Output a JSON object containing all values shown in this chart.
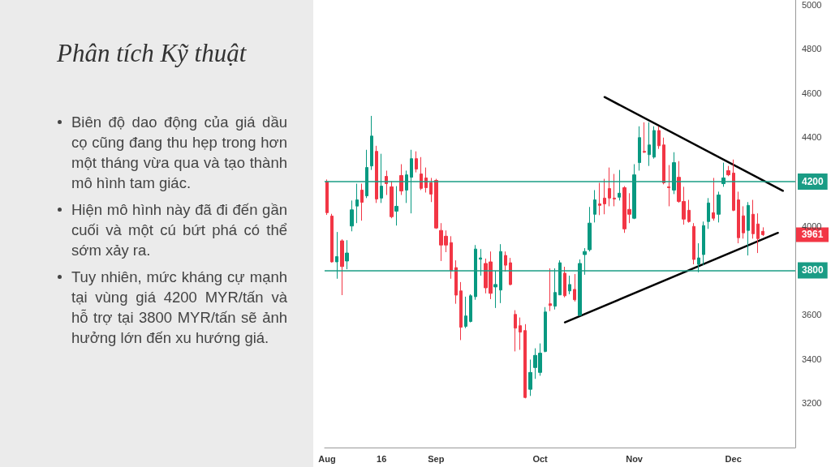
{
  "chart_data": {
    "type": "candlestick",
    "title": "Phân tích Kỹ thuật",
    "annotations": [
      "Biên độ dao động của giá dầu cọ cũng đang thu hẹp trong hơn một tháng vừa qua và tạo thành mô hình tam giác.",
      "Hiện mô hình này đã đi đến gần cuối và một cú bứt phá có thể sớm xảy ra.",
      "Tuy nhiên, mức kháng cự mạnh tại vùng giá 4200 MYR/tấn và hỗ trợ tại 3800 MYR/tấn sẽ ảnh hưởng lớn đến xu hướng giá.",
      {
        "text": "3961",
        "y": 3961
      }
    ],
    "categories": [
      "Aug",
      null,
      null,
      null,
      null,
      null,
      null,
      null,
      null,
      null,
      null,
      "16",
      null,
      null,
      null,
      null,
      null,
      null,
      null,
      null,
      null,
      null,
      "Sep",
      null,
      null,
      null,
      null,
      null,
      null,
      null,
      null,
      null,
      null,
      null,
      null,
      null,
      null,
      null,
      null,
      null,
      null,
      null,
      null,
      "Oct",
      null,
      null,
      null,
      null,
      null,
      null,
      null,
      null,
      null,
      null,
      null,
      null,
      null,
      null,
      null,
      null,
      null,
      null,
      "Nov",
      null,
      null,
      null,
      null,
      null,
      null,
      null,
      null,
      null,
      null,
      null,
      null,
      null,
      null,
      null,
      null,
      null,
      null,
      null,
      "Dec",
      null,
      null,
      null,
      null,
      null,
      null,
      null,
      null,
      null,
      null,
      null,
      null
    ],
    "ohlc": [
      [
        4200,
        4210,
        4050,
        4060
      ],
      [
        4045,
        4055,
        3835,
        3838
      ],
      [
        3838,
        3973,
        3762,
        3862
      ],
      [
        3933,
        3940,
        3688,
        3817
      ],
      [
        3842,
        3936,
        3805,
        3878
      ],
      [
        4000,
        4115,
        3976,
        4073
      ],
      [
        4090,
        4191,
        4013,
        4118
      ],
      [
        4162,
        4191,
        4024,
        4107
      ],
      [
        4136,
        4344,
        4126,
        4264
      ],
      [
        4271,
        4497,
        4253,
        4406
      ],
      [
        4337,
        4362,
        4104,
        4122
      ],
      [
        4126,
        4326,
        4104,
        4180
      ],
      [
        4224,
        4250,
        4140,
        4191
      ],
      [
        4177,
        4202,
        4035,
        4042
      ],
      [
        4067,
        4180,
        4002,
        4089
      ],
      [
        4228,
        4279,
        4140,
        4158
      ],
      [
        4162,
        4250,
        4104,
        4231
      ],
      [
        4220,
        4344,
        4057,
        4304
      ],
      [
        4304,
        4337,
        4242,
        4257
      ],
      [
        4235,
        4311,
        4162,
        4170
      ],
      [
        4217,
        4264,
        4151,
        4173
      ],
      [
        4195,
        4217,
        4108,
        4144
      ],
      [
        4206,
        4213,
        3987,
        3991
      ],
      [
        3980,
        4013,
        3842,
        3914
      ],
      [
        3954,
        3980,
        3882,
        3914
      ],
      [
        3925,
        3954,
        3762,
        3798
      ],
      [
        3812,
        3845,
        3649,
        3688
      ],
      [
        3707,
        3747,
        3485,
        3543
      ],
      [
        3547,
        3681,
        3539,
        3594
      ],
      [
        3569,
        3692,
        3565,
        3685
      ],
      [
        3681,
        3914,
        3667,
        3896
      ],
      [
        3850,
        3896,
        3776,
        3856
      ],
      [
        3831,
        3853,
        3696,
        3721
      ],
      [
        3838,
        3885,
        3670,
        3696
      ],
      [
        3725,
        3798,
        3630,
        3736
      ],
      [
        3711,
        3918,
        3652,
        3885
      ],
      [
        3867,
        3885,
        3794,
        3823
      ],
      [
        3834,
        3856,
        3732,
        3736
      ],
      [
        3601,
        3620,
        3434,
        3539
      ],
      [
        3550,
        3587,
        3441,
        3521
      ],
      [
        3528,
        3557,
        3222,
        3226
      ],
      [
        3263,
        3397,
        3233,
        3339
      ],
      [
        3361,
        3448,
        3310,
        3416
      ],
      [
        3339,
        3470,
        3324,
        3426
      ],
      [
        3434,
        3634,
        3430,
        3612
      ],
      [
        3649,
        3809,
        3616,
        3641
      ],
      [
        3638,
        3809,
        3623,
        3700
      ],
      [
        3689,
        3845,
        3689,
        3834
      ],
      [
        3787,
        3816,
        3678,
        3685
      ],
      [
        3707,
        3776,
        3692,
        3736
      ],
      [
        3714,
        3783,
        3659,
        3667
      ],
      [
        3597,
        3849,
        3594,
        3831
      ],
      [
        3871,
        3900,
        3780,
        3885
      ],
      [
        3893,
        4086,
        3885,
        4013
      ],
      [
        4053,
        4162,
        4016,
        4118
      ],
      [
        4100,
        4195,
        4049,
        4093
      ],
      [
        4126,
        4213,
        4053,
        4100
      ],
      [
        4169,
        4264,
        4089,
        4126
      ],
      [
        4126,
        4235,
        4089,
        4122
      ],
      [
        4130,
        4253,
        4115,
        4148
      ],
      [
        4173,
        4180,
        3969,
        3987
      ],
      [
        4075,
        4148,
        4013,
        4053
      ],
      [
        4035,
        4279,
        4031,
        4231
      ],
      [
        4286,
        4450,
        4250,
        4399
      ],
      [
        4337,
        4468,
        4330,
        4333
      ],
      [
        4322,
        4468,
        4271,
        4366
      ],
      [
        4311,
        4450,
        4304,
        4431
      ],
      [
        4431,
        4450,
        4348,
        4362
      ],
      [
        4366,
        4399,
        4188,
        4195
      ],
      [
        4177,
        4275,
        4089,
        4173
      ],
      [
        4162,
        4333,
        4144,
        4286
      ],
      [
        4220,
        4293,
        4105,
        4111
      ],
      [
        4111,
        4177,
        4006,
        4031
      ],
      [
        4071,
        4118,
        4015,
        4020
      ],
      [
        3998,
        4013,
        3827,
        3849
      ],
      [
        3827,
        3922,
        3791,
        3856
      ],
      [
        3871,
        4020,
        3823,
        4002
      ],
      [
        4020,
        4126,
        3987,
        4104
      ],
      [
        4060,
        4217,
        4024,
        4035
      ],
      [
        4053,
        4155,
        4016,
        4140
      ],
      [
        4191,
        4286,
        4177,
        4217
      ],
      [
        4250,
        4271,
        4225,
        4231
      ],
      [
        4239,
        4300,
        4067,
        4071
      ],
      [
        4118,
        4155,
        3922,
        3947
      ],
      [
        4046,
        4089,
        3943,
        3969
      ],
      [
        3980,
        4108,
        3867,
        4093
      ],
      [
        4053,
        4118,
        3943,
        3965
      ],
      [
        4009,
        4057,
        3878,
        3943
      ],
      [
        3976,
        3994,
        3955,
        3961
      ],
      null,
      null,
      null,
      null,
      null,
      null
    ],
    "series": [
      {
        "type": "line",
        "color": "#000000",
        "values": [
          null,
          null,
          null,
          null,
          null,
          null,
          null,
          null,
          null,
          null,
          null,
          null,
          null,
          null,
          null,
          null,
          null,
          null,
          null,
          null,
          null,
          null,
          null,
          null,
          null,
          null,
          null,
          null,
          null,
          null,
          null,
          null,
          null,
          null,
          null,
          null,
          null,
          null,
          null,
          null,
          null,
          null,
          null,
          null,
          null,
          null,
          null,
          null,
          null,
          null,
          null,
          null,
          null,
          null,
          null,
          null,
          4582,
          null,
          null,
          null,
          null,
          null,
          null,
          null,
          null,
          null,
          null,
          null,
          null,
          null,
          null,
          null,
          null,
          null,
          null,
          null,
          null,
          null,
          null,
          null,
          null,
          null,
          null,
          null,
          null,
          null,
          null,
          null,
          null,
          null,
          null,
          null,
          4159,
          null,
          null
        ]
      },
      {
        "type": "line",
        "color": "#000000",
        "values": [
          null,
          null,
          null,
          null,
          null,
          null,
          null,
          null,
          null,
          null,
          null,
          null,
          null,
          null,
          null,
          null,
          null,
          null,
          null,
          null,
          null,
          null,
          null,
          null,
          null,
          null,
          null,
          null,
          null,
          null,
          null,
          null,
          null,
          null,
          null,
          null,
          null,
          null,
          null,
          null,
          null,
          null,
          null,
          null,
          null,
          null,
          null,
          null,
          3565,
          null,
          null,
          null,
          null,
          null,
          null,
          null,
          null,
          null,
          null,
          null,
          null,
          null,
          null,
          null,
          null,
          null,
          null,
          null,
          null,
          null,
          null,
          null,
          null,
          null,
          null,
          null,
          null,
          null,
          null,
          null,
          null,
          null,
          null,
          null,
          null,
          null,
          null,
          null,
          null,
          null,
          null,
          3969,
          null,
          null,
          null
        ]
      }
    ],
    "ylim": [
      3000,
      5020
    ],
    "yticks": [
      3200,
      3400,
      3600,
      4000,
      4400,
      4600,
      4800,
      5000
    ],
    "ref_lines": [
      {
        "axis": "y",
        "value": 4200,
        "label": "4200",
        "color": "#1a9c85"
      },
      {
        "axis": "y",
        "value": 3800,
        "label": "3800",
        "color": "#1a9c85"
      }
    ],
    "marker": "none",
    "line_style": "solid"
  }
}
